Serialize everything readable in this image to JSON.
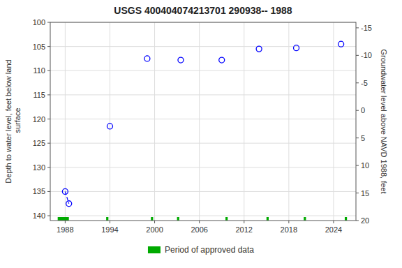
{
  "chart_data": {
    "type": "scatter",
    "title": "USGS 400404074213701 290938-- 1988",
    "ylabel": "Depth to water level, feet below land\n surface",
    "y2label": "Groundwater level above NAVD 1988, feet",
    "xlim": [
      1986,
      2027
    ],
    "xticks": [
      1988,
      1994,
      2000,
      2006,
      2012,
      2018,
      2024
    ],
    "ylim": [
      141,
      100
    ],
    "yticks": [
      100,
      105,
      110,
      115,
      120,
      125,
      130,
      135,
      140
    ],
    "y2lim": [
      20,
      -16
    ],
    "y2ticks": [
      20,
      15,
      10,
      5,
      0,
      -5,
      -10,
      -15
    ],
    "grid": true,
    "legend": "bottom",
    "series": [
      {
        "type": "scatter",
        "color": "blue",
        "marker": "circle",
        "x": [
          1988.0,
          1988.5,
          1994.0,
          1999.0,
          2003.5,
          2009.0,
          2014.0,
          2019.0,
          2025.0
        ],
        "values": [
          135.0,
          137.5,
          121.5,
          107.5,
          107.8,
          107.8,
          105.5,
          105.3,
          104.5
        ]
      },
      {
        "type": "line",
        "color": "blue",
        "line_style": "dashed",
        "x": [
          1988.0,
          1988.5
        ],
        "values": [
          135.0,
          137.5
        ]
      },
      {
        "type": "bar",
        "name": "Period of approved data",
        "color": "#00aa00",
        "x": [
          1987.0,
          1993.5,
          1999.5,
          2003.0,
          2009.5,
          2015.0,
          2020.0,
          2025.5
        ],
        "width": [
          1.5,
          0.3,
          0.3,
          0.3,
          0.3,
          0.3,
          0.3,
          0.3
        ]
      }
    ]
  }
}
